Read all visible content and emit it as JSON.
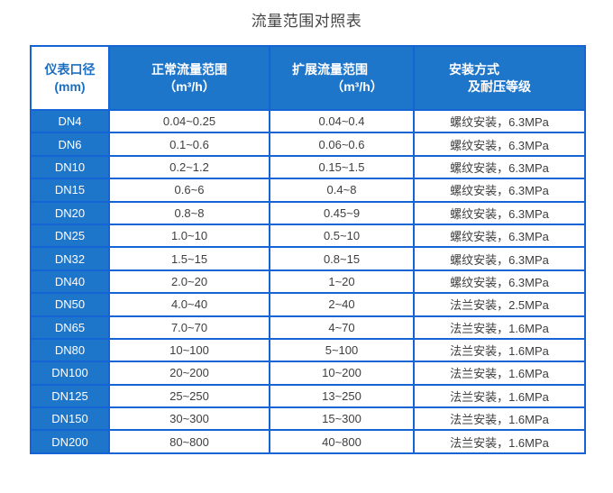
{
  "page": {
    "title": "流量范围对照表"
  },
  "colors": {
    "blue_fill": "#1e76cb",
    "blue_border": "#1464d6",
    "diameter_header_text": "#1a6fc4",
    "data_text": "#3e3e3e",
    "header_text": "#ffffff"
  },
  "table": {
    "columns": [
      {
        "id": "diameter",
        "line1": "仪表口径",
        "line2": "(mm)"
      },
      {
        "id": "normal",
        "line1": "正常流量范围",
        "line2": "（m³/h）"
      },
      {
        "id": "extended",
        "line1": "扩展流量范围",
        "line2": "（m³/h）"
      },
      {
        "id": "install",
        "line1": "安装方式",
        "line2": "及耐压等级"
      }
    ],
    "rows": [
      {
        "dn": "DN4",
        "normal": "0.04~0.25",
        "extended": "0.04~0.4",
        "install": "螺纹安装，6.3MPa"
      },
      {
        "dn": "DN6",
        "normal": "0.1~0.6",
        "extended": "0.06~0.6",
        "install": "螺纹安装，6.3MPa"
      },
      {
        "dn": "DN10",
        "normal": "0.2~1.2",
        "extended": "0.15~1.5",
        "install": "螺纹安装，6.3MPa"
      },
      {
        "dn": "DN15",
        "normal": "0.6~6",
        "extended": "0.4~8",
        "install": "螺纹安装，6.3MPa"
      },
      {
        "dn": "DN20",
        "normal": "0.8~8",
        "extended": "0.45~9",
        "install": "螺纹安装，6.3MPa"
      },
      {
        "dn": "DN25",
        "normal": "1.0~10",
        "extended": "0.5~10",
        "install": "螺纹安装，6.3MPa"
      },
      {
        "dn": "DN32",
        "normal": "1.5~15",
        "extended": "0.8~15",
        "install": "螺纹安装，6.3MPa"
      },
      {
        "dn": "DN40",
        "normal": "2.0~20",
        "extended": "1~20",
        "install": "螺纹安装，6.3MPa"
      },
      {
        "dn": "DN50",
        "normal": "4.0~40",
        "extended": "2~40",
        "install": "法兰安装，2.5MPa"
      },
      {
        "dn": "DN65",
        "normal": "7.0~70",
        "extended": "4~70",
        "install": "法兰安装，1.6MPa"
      },
      {
        "dn": "DN80",
        "normal": "10~100",
        "extended": "5~100",
        "install": "法兰安装，1.6MPa"
      },
      {
        "dn": "DN100",
        "normal": "20~200",
        "extended": "10~200",
        "install": "法兰安装，1.6MPa"
      },
      {
        "dn": "DN125",
        "normal": "25~250",
        "extended": "13~250",
        "install": "法兰安装，1.6MPa"
      },
      {
        "dn": "DN150",
        "normal": "30~300",
        "extended": "15~300",
        "install": "法兰安装，1.6MPa"
      },
      {
        "dn": "DN200",
        "normal": "80~800",
        "extended": "40~800",
        "install": "法兰安装，1.6MPa"
      }
    ]
  }
}
